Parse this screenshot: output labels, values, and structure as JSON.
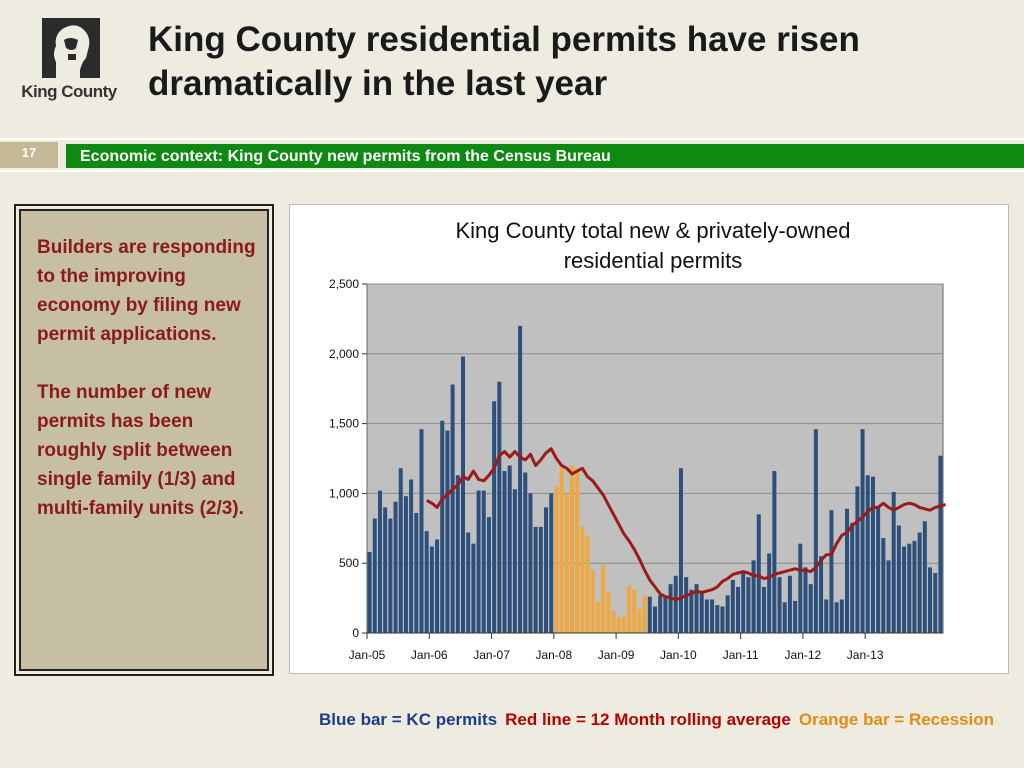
{
  "header": {
    "logo_text": "King County",
    "title": "King County residential permits have risen dramatically in the last year",
    "slide_number": "17",
    "subtitle_bar": "Economic context:  King County new permits from the Census Bureau"
  },
  "sidebar_text": {
    "paragraph_1": "Builders are responding to the improving economy by filing new permit applications.",
    "paragraph_2": "The number of new permits has been roughly split between single family (1/3) and multi-family units (2/3)."
  },
  "legend_note": {
    "blue": "Blue bar = KC permits",
    "red": "Red line = 12 Month rolling average",
    "orange": "Orange bar = Recession"
  },
  "colors": {
    "blue_bar": "#2c4f7c",
    "orange_bar": "#f0a73c",
    "rolling_line": "#9b1b1b",
    "plot_bg": "#c0c0c0",
    "green_bar": "#0e8a13"
  },
  "chart_data": {
    "type": "bar",
    "title": "King County total new & privately-owned residential permits",
    "xlabel": "",
    "ylabel": "",
    "ylim": [
      0,
      2500
    ],
    "yticks": [
      "0",
      "500",
      "1,000",
      "1,500",
      "2,000",
      "2,500"
    ],
    "ytick_values": [
      0,
      500,
      1000,
      1500,
      2000,
      2500
    ],
    "x_tick_labels": [
      "Jan-05",
      "Jan-06",
      "Jan-07",
      "Jan-08",
      "Jan-09",
      "Jan-10",
      "Jan-11",
      "Jan-12",
      "Jan-13"
    ],
    "x_tick_month_index": [
      0,
      12,
      24,
      36,
      48,
      60,
      72,
      84,
      96
    ],
    "grid": "horizontal",
    "start_month": "Jan-05",
    "recession_months": [
      36,
      53
    ],
    "series": [
      {
        "values": [
          580,
          820,
          1020,
          900,
          820,
          940,
          1180,
          980,
          1100,
          860,
          1460,
          730,
          620,
          670,
          1520,
          1450,
          1780,
          1130,
          1980,
          720,
          640,
          1020,
          1020,
          830,
          1660,
          1800,
          1160,
          1200,
          1030,
          2200,
          1150,
          1000,
          760,
          760,
          900,
          1000,
          1050,
          1180,
          1000,
          1200,
          1180,
          760,
          700,
          450,
          220,
          490,
          300,
          160,
          110,
          120,
          340,
          310,
          170,
          270,
          260,
          190,
          270,
          270,
          350,
          410,
          1180,
          400,
          310,
          350,
          300,
          240,
          240,
          200,
          190,
          270,
          380,
          330,
          440,
          400,
          520,
          850,
          330,
          570,
          1160,
          400,
          220,
          410,
          230,
          640,
          470,
          350,
          1460,
          550,
          240,
          880,
          220,
          240,
          890,
          790,
          1050,
          1460,
          1130,
          1120,
          900,
          680,
          520,
          1010,
          770,
          620,
          640,
          660,
          720,
          800,
          470,
          430,
          1270
        ],
        "color": "#2c4f7c"
      },
      {
        "type": "line",
        "values": [
          null,
          null,
          null,
          null,
          null,
          null,
          null,
          null,
          null,
          null,
          null,
          950,
          930,
          900,
          960,
          990,
          1030,
          1060,
          1120,
          1100,
          1160,
          1100,
          1090,
          1130,
          1180,
          1270,
          1300,
          1260,
          1300,
          1260,
          1240,
          1280,
          1200,
          1240,
          1290,
          1320,
          1250,
          1200,
          1180,
          1140,
          1160,
          1180,
          1120,
          1090,
          1040,
          990,
          920,
          850,
          780,
          710,
          660,
          600,
          530,
          450,
          380,
          330,
          280,
          260,
          250,
          240,
          250,
          270,
          280,
          300,
          290,
          300,
          310,
          330,
          370,
          390,
          420,
          430,
          440,
          430,
          410,
          410,
          390,
          400,
          420,
          430,
          440,
          450,
          460,
          450,
          450,
          440,
          470,
          520,
          560,
          560,
          640,
          700,
          720,
          770,
          800,
          830,
          870,
          900,
          900,
          930,
          900,
          880,
          900,
          920,
          930,
          920,
          900,
          890,
          880,
          900,
          910,
          920
        ],
        "color": "#9b1b1b"
      }
    ]
  }
}
